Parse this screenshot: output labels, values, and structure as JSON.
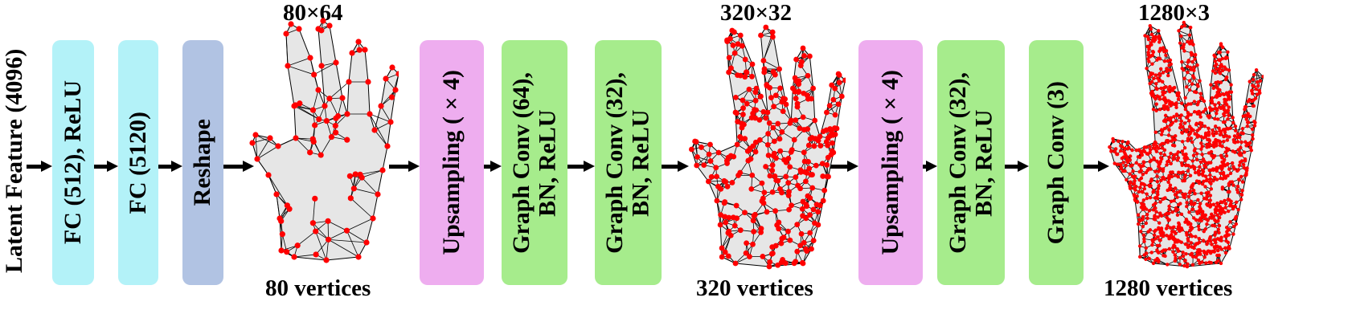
{
  "input_label": "Latent Feature (4096)",
  "blocks": [
    {
      "lines": [
        "FC (512), ReLU"
      ],
      "color": "#b3f2f8"
    },
    {
      "lines": [
        "FC (5120)"
      ],
      "color": "#b3f2f8"
    },
    {
      "lines": [
        "Reshape"
      ],
      "color": "#b1c3e3"
    },
    {
      "lines": [
        "Upsampling (×4)"
      ],
      "color": "#eeadef"
    },
    {
      "lines": [
        "Graph Conv (64),",
        "BN, ReLU"
      ],
      "color": "#a6ec8c"
    },
    {
      "lines": [
        "Graph Conv (32),",
        "BN, ReLU"
      ],
      "color": "#a6ec8c"
    },
    {
      "lines": [
        "Upsampling (×4)"
      ],
      "color": "#eeadef"
    },
    {
      "lines": [
        "Graph Conv (32),",
        "BN, ReLU"
      ],
      "color": "#a6ec8c"
    },
    {
      "lines": [
        "Graph Conv (3)"
      ],
      "color": "#a6ec8c"
    }
  ],
  "meshes": [
    {
      "top_label": "80×64",
      "bottom_label": "80 vertices",
      "vertex_color": "#ff0000"
    },
    {
      "top_label": "320×32",
      "bottom_label": "320 vertices",
      "vertex_color": "#ff0000"
    },
    {
      "top_label": "1280×3",
      "bottom_label": "1280 vertices",
      "vertex_color": "#ff0000"
    }
  ],
  "colors": {
    "mesh_fill": "#e6e6e6",
    "edge": "#000000",
    "arrow": "#000000"
  }
}
